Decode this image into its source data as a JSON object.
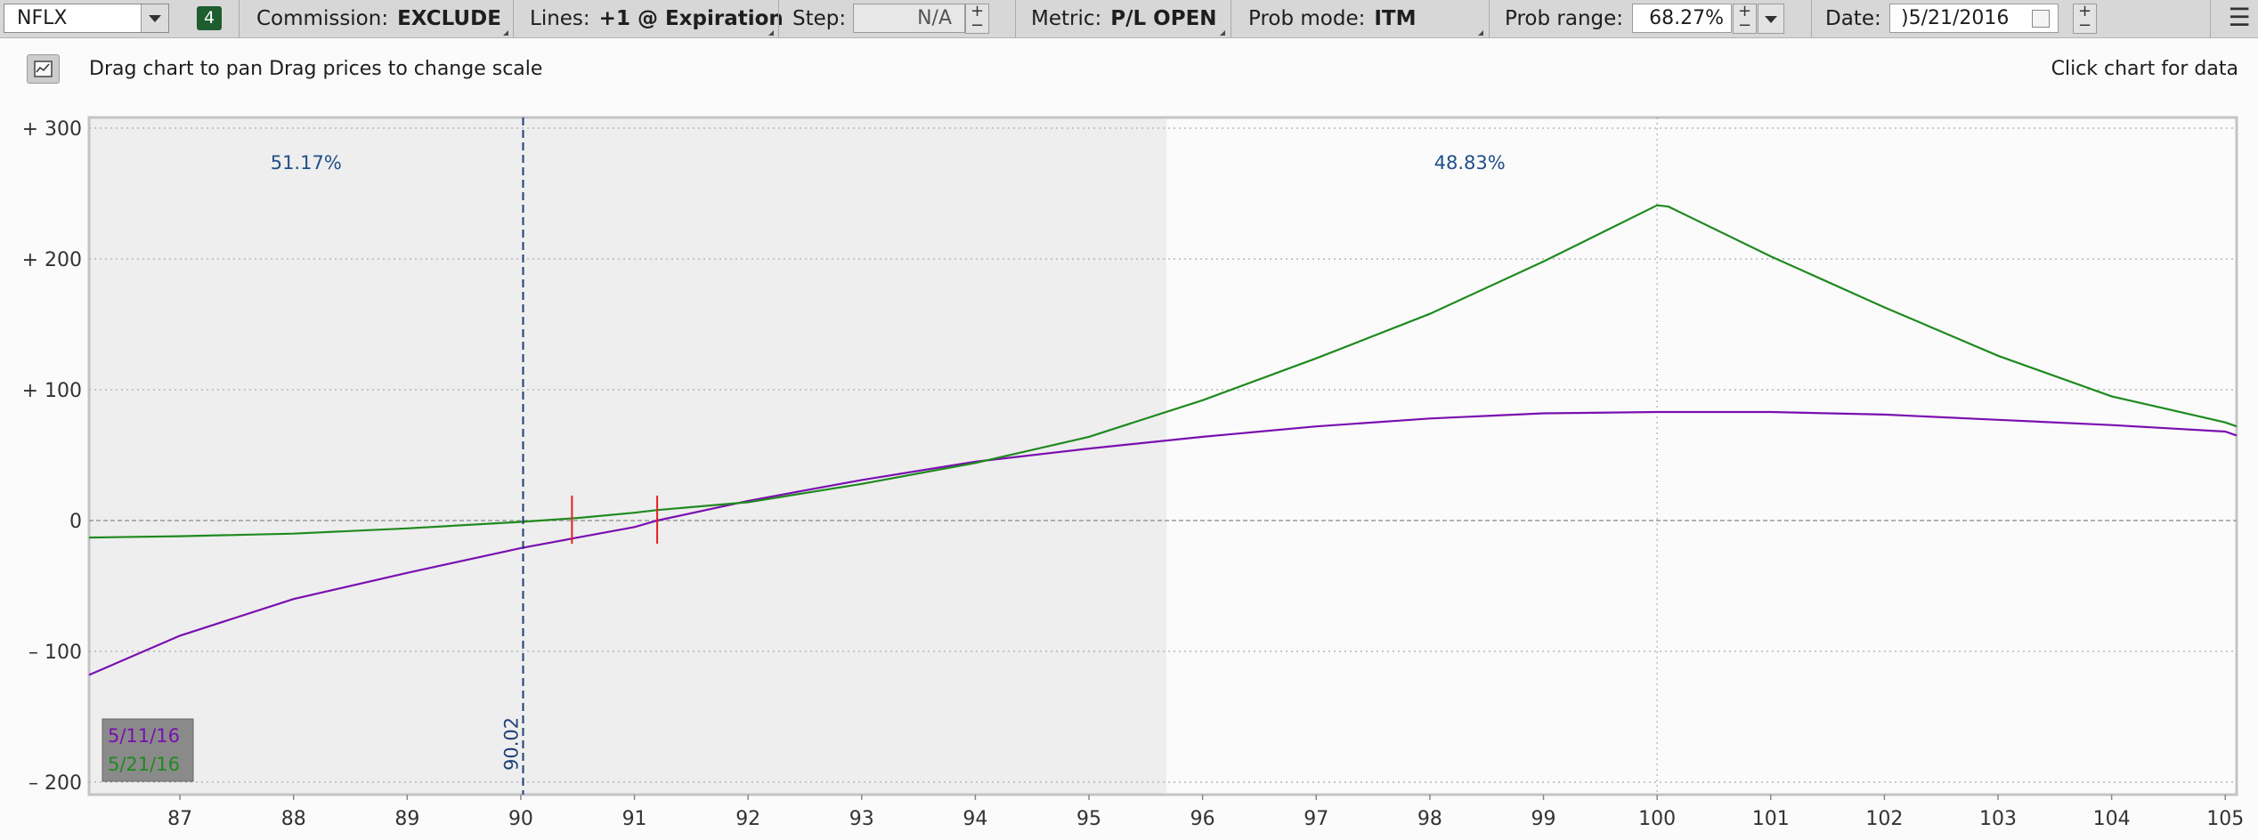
{
  "toolbar": {
    "symbol": "NFLX",
    "badge": "4",
    "commission_label": "Commission:",
    "commission_value": "EXCLUDE",
    "lines_label": "Lines:",
    "lines_value": "+1 @ Expiration",
    "step_label": "Step:",
    "step_value": "N/A",
    "metric_label": "Metric:",
    "metric_value": "P/L OPEN",
    "prob_mode_label": "Prob mode:",
    "prob_mode_value": "ITM",
    "prob_range_label": "Prob range:",
    "prob_range_value": "68.27%",
    "date_label": "Date:",
    "date_value": ")5/21/2016",
    "menu_icon": "hamburger-menu-icon"
  },
  "info_bar": {
    "chart_type_icon": "line-chart-icon",
    "hint": "Drag chart to pan Drag prices to change scale",
    "click_hint": "Click chart for data"
  },
  "colors": {
    "series_1": "#7a0fb0",
    "series_2": "#1f8a1f",
    "marker": "#e02020",
    "price_line": "#1f3f78",
    "prob_text": "#1f4f88",
    "shaded_region": "#eeeeee"
  },
  "chart_data": {
    "type": "line",
    "xlim": [
      86.2,
      105.1
    ],
    "ylim": [
      -200,
      300
    ],
    "x_ticks": [
      87,
      88,
      89,
      90,
      91,
      92,
      93,
      94,
      95,
      96,
      97,
      98,
      99,
      100,
      101,
      102,
      103,
      104,
      105
    ],
    "y_ticks": [
      {
        "value": 300,
        "label": "+ 300"
      },
      {
        "value": 200,
        "label": "+ 200"
      },
      {
        "value": 100,
        "label": "+ 100"
      },
      {
        "value": 0,
        "label": "0"
      },
      {
        "value": -100,
        "label": "– 100"
      },
      {
        "value": -200,
        "label": "– 200"
      }
    ],
    "grid": true,
    "series": [
      {
        "name": "5/11/16",
        "color": "#7a0fb0",
        "x": [
          86.2,
          87,
          88,
          89,
          90,
          90.5,
          91,
          91.2,
          92,
          93,
          94,
          95,
          96,
          97,
          98,
          99,
          100,
          101,
          102,
          103,
          104,
          105,
          105.1
        ],
        "y": [
          -118,
          -88,
          -60,
          -40,
          -21,
          -13,
          -5,
          0,
          15,
          31,
          45,
          55,
          64,
          72,
          78,
          82,
          83,
          83,
          81,
          77,
          73,
          68,
          65
        ]
      },
      {
        "name": "5/21/16",
        "color": "#1f8a1f",
        "x": [
          86.2,
          87,
          88,
          89,
          90,
          90.5,
          91,
          91.2,
          92,
          93,
          94,
          95,
          96,
          97,
          98,
          99,
          100,
          100.1,
          101,
          102,
          103,
          104,
          105,
          105.1
        ],
        "y": [
          -13,
          -12,
          -10,
          -6,
          -1,
          2,
          6,
          8,
          14,
          28,
          44,
          64,
          92,
          124,
          158,
          198,
          241,
          240,
          202,
          163,
          126,
          95,
          75,
          72
        ]
      }
    ],
    "current_price": 90.02,
    "current_price_label": "90.02",
    "markers_x": [
      90.45,
      91.2
    ],
    "shaded_range": [
      86.2,
      95.67
    ],
    "probabilities": {
      "left": "51.17%",
      "right": "48.83%"
    },
    "legend": [
      "5/11/16",
      "5/21/16"
    ],
    "legend_position": "bottom-left"
  }
}
